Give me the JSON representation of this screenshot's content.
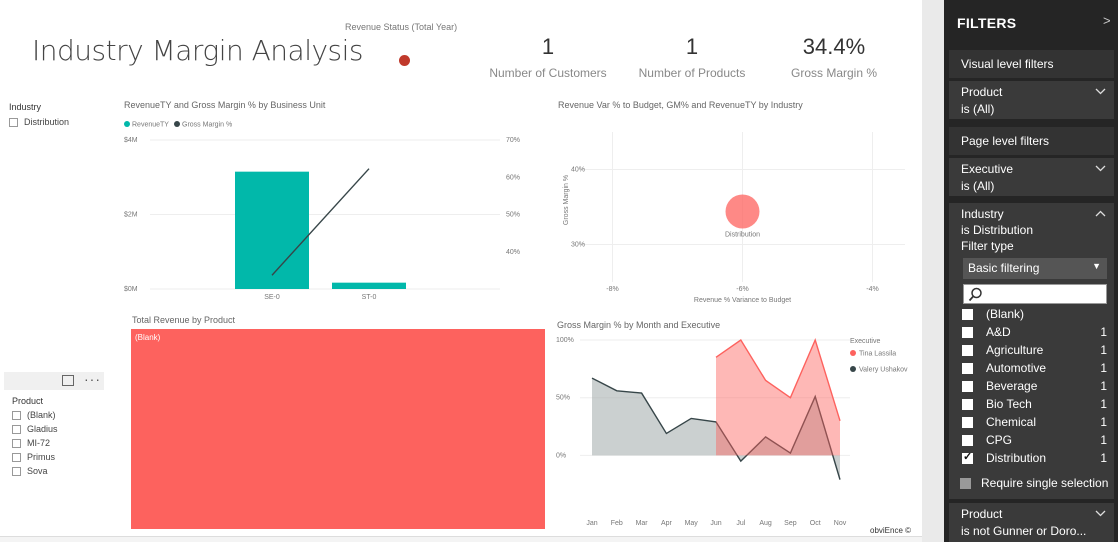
{
  "report": {
    "title": "Industry Margin Analysis",
    "status_label": "Revenue Status (Total Year)",
    "credit": "obviEnce ©"
  },
  "kpis": [
    {
      "value": "1",
      "label": "Number of Customers"
    },
    {
      "value": "1",
      "label": "Number of Products"
    },
    {
      "value": "34.4%",
      "label": "Gross Margin %"
    }
  ],
  "industry_slicer": {
    "title": "Industry",
    "items": [
      "Distribution"
    ]
  },
  "product_slicer": {
    "title": "Product",
    "items": [
      "(Blank)",
      "Gladius",
      "MI-72",
      "Primus",
      "Sova"
    ]
  },
  "colors": {
    "teal": "#01b8aa",
    "dark": "#374649",
    "red": "#fd625e",
    "status": "#c0392b"
  },
  "combo_chart": {
    "title": "RevenueTY and Gross Margin % by Business Unit",
    "legend": [
      "RevenueTY",
      "Gross Margin %"
    ],
    "y_ticks": [
      "$4M",
      "$2M",
      "$0M"
    ],
    "y2_ticks": [
      "70%",
      "60%",
      "50%",
      "40%"
    ],
    "chart_data": {
      "type": "bar",
      "categories": [
        "SE-0",
        "ST-0"
      ],
      "series": [
        {
          "name": "RevenueTY",
          "values": [
            3150000,
            170000
          ]
        },
        {
          "name": "Gross Margin %",
          "values": [
            0.337,
            0.623
          ]
        }
      ],
      "ylim": [
        0,
        4000000
      ],
      "y2lim": [
        0.3,
        0.7
      ]
    }
  },
  "scatter_chart": {
    "title": "Revenue Var % to Budget, GM% and RevenueTY by Industry",
    "xlabel": "Revenue % Variance to Budget",
    "ylabel": "Gross Margin %",
    "x_ticks": [
      "-8%",
      "-6%",
      "-4%"
    ],
    "y_ticks": [
      "40%",
      "30%"
    ],
    "point_label": "Distribution",
    "chart_data": {
      "type": "scatter",
      "points": [
        {
          "label": "Distribution",
          "x": -6.0,
          "y": 34.4
        }
      ],
      "xlim": [
        -8.5,
        -3.5
      ],
      "ylim": [
        25,
        45
      ]
    }
  },
  "treemap": {
    "title": "Total Revenue by Product",
    "label": "(Blank)"
  },
  "area_chart": {
    "title": "Gross Margin % by Month and Executive",
    "legend_title": "Executive",
    "y_ticks": [
      "100%",
      "50%",
      "0%"
    ],
    "chart_data": {
      "type": "area",
      "x": [
        "Jan",
        "Feb",
        "Mar",
        "Apr",
        "May",
        "Jun",
        "Jul",
        "Aug",
        "Sep",
        "Oct",
        "Nov"
      ],
      "series": [
        {
          "name": "Tina Lassila",
          "values": [
            null,
            null,
            null,
            null,
            null,
            85,
            100,
            65,
            50,
            100,
            30
          ]
        },
        {
          "name": "Valery Ushakov",
          "values": [
            67,
            56,
            54,
            19,
            32,
            29,
            -5,
            16,
            2,
            51,
            -21
          ]
        }
      ],
      "ylim": [
        -30,
        100
      ]
    }
  },
  "filters": {
    "header": "FILTERS",
    "visual_level": "Visual level filters",
    "product_filter": {
      "title": "Product",
      "state": "is (All)"
    },
    "page_level": "Page level filters",
    "executive_filter": {
      "title": "Executive",
      "state": "is (All)"
    },
    "industry_filter": {
      "title": "Industry",
      "state": "is Distribution",
      "filter_type_label": "Filter type",
      "filter_type_value": "Basic filtering",
      "items": [
        {
          "label": "(Blank)",
          "count": "",
          "checked": false
        },
        {
          "label": "A&D",
          "count": "1",
          "checked": false
        },
        {
          "label": "Agriculture",
          "count": "1",
          "checked": false
        },
        {
          "label": "Automotive",
          "count": "1",
          "checked": false
        },
        {
          "label": "Beverage",
          "count": "1",
          "checked": false
        },
        {
          "label": "Bio Tech",
          "count": "1",
          "checked": false
        },
        {
          "label": "Chemical",
          "count": "1",
          "checked": false
        },
        {
          "label": "CPG",
          "count": "1",
          "checked": false
        },
        {
          "label": "Distribution",
          "count": "1",
          "checked": true
        }
      ],
      "require_single": "Require single selection"
    },
    "product_filter_2": {
      "title": "Product",
      "state": "is not Gunner or Doro..."
    }
  }
}
